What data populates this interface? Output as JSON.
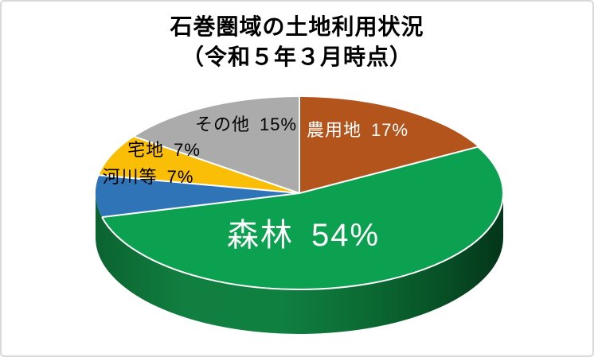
{
  "frame": {
    "border_color": "#d9d9d9",
    "background_color": "#ffffff"
  },
  "title": {
    "line1": "石巻圏域の土地利用状況",
    "line2": "（令和５年３月時点）"
  },
  "chart_data": {
    "type": "pie",
    "style": "3d",
    "title": "石巻圏域の土地利用状況（令和５年３月時点）",
    "unit": "%",
    "start_angle": "12-oclock",
    "direction": "clockwise",
    "legend": "none",
    "slices": [
      {
        "key": "farmland",
        "label": "農用地",
        "value": 17,
        "color": "#b2541c",
        "label_color": "#ffffff"
      },
      {
        "key": "forest",
        "label": "森林",
        "value": 54,
        "color": "#0ca150",
        "label_color": "#ffffff"
      },
      {
        "key": "rivers",
        "label": "河川等",
        "value": 7,
        "color": "#2e74b6",
        "label_color": "#000000"
      },
      {
        "key": "residential",
        "label": "宅地",
        "value": 7,
        "color": "#fbbe06",
        "label_color": "#000000"
      },
      {
        "key": "other",
        "label": "その他",
        "value": 15,
        "color": "#ababab",
        "label_color": "#000000"
      }
    ],
    "side_colors": [
      "#0b6330",
      "#117f3f",
      "#108041",
      "#0c6c33",
      "#075026",
      "#04351a"
    ],
    "separator_color": "#ffffff"
  }
}
